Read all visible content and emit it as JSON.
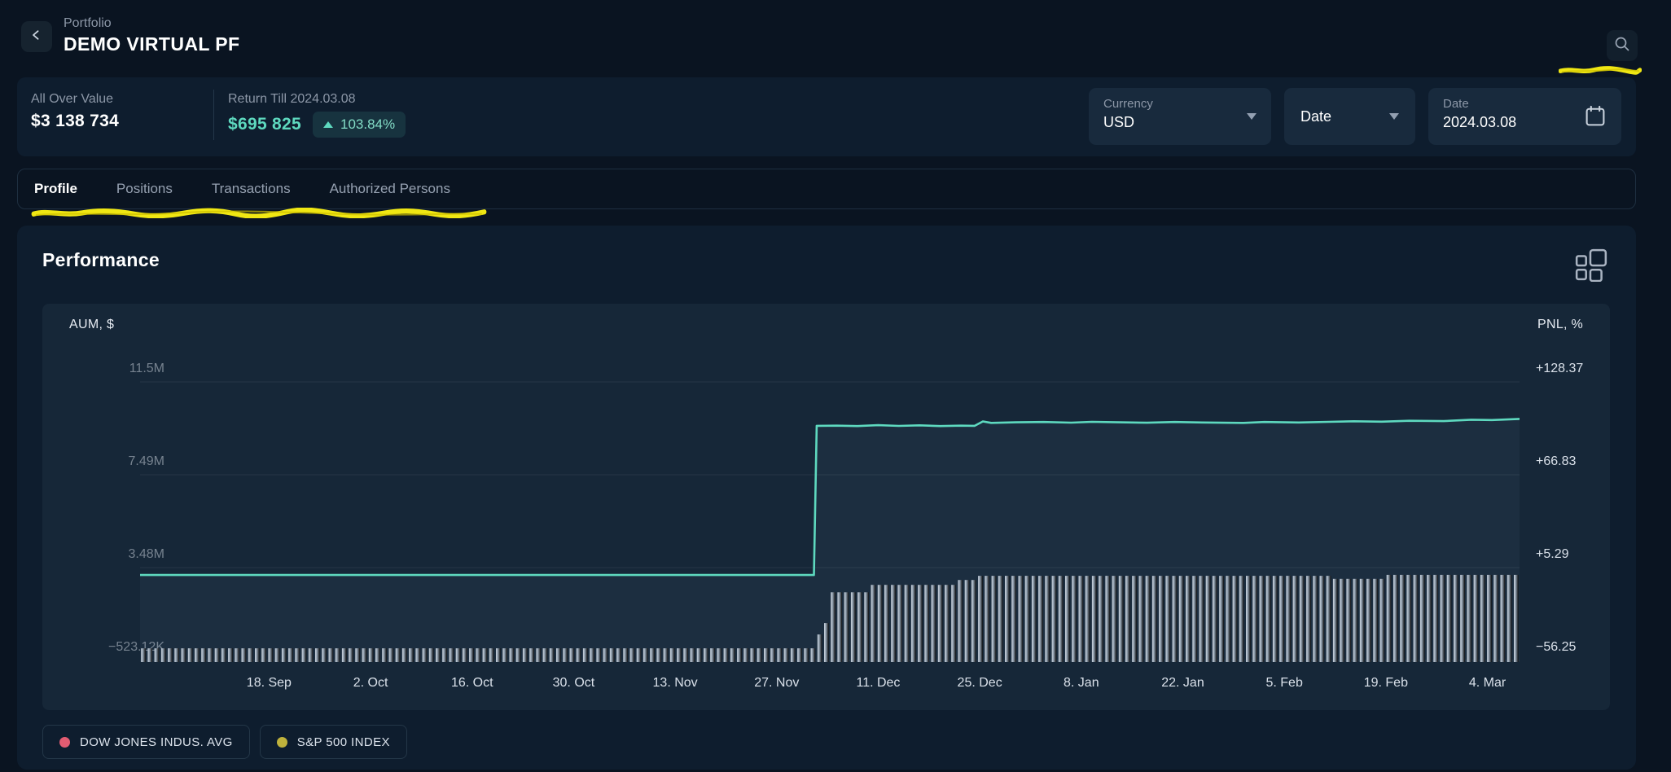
{
  "header": {
    "breadcrumb": "Portfolio",
    "title": "DEMO VIRTUAL PF"
  },
  "stats": {
    "all_over_value": {
      "label": "All Over Value",
      "value": "$3 138 734"
    },
    "return": {
      "label": "Return Till 2024.03.08",
      "value": "$695 825",
      "change": "103.84%"
    },
    "currency": {
      "label": "Currency",
      "value": "USD"
    },
    "date_dropdown": {
      "label": "Date"
    },
    "date_field": {
      "label": "Date",
      "value": "2024.03.08"
    }
  },
  "tabs": [
    {
      "label": "Profile",
      "active": true
    },
    {
      "label": "Positions",
      "active": false
    },
    {
      "label": "Transactions",
      "active": false
    },
    {
      "label": "Authorized Persons",
      "active": false
    }
  ],
  "performance": {
    "title": "Performance"
  },
  "legend": [
    {
      "label": "DOW JONES INDUS. AVG",
      "color": "#e25c72"
    },
    {
      "label": "S&P 500 INDEX",
      "color": "#bfb23c"
    }
  ],
  "chart_data": {
    "type": "line+bar",
    "title": "Performance",
    "grid": true,
    "legend_position": "bottom-left",
    "left_axis": {
      "label": "AUM, $",
      "tick_labels": [
        "11.5M",
        "7.49M",
        "3.48M",
        "−523.12K"
      ],
      "tick_values": [
        11500000,
        7490000,
        3480000,
        -523120
      ]
    },
    "right_axis": {
      "label": "PNL, %",
      "tick_labels": [
        "+128.37",
        "+66.83",
        "+5.29",
        "−56.25"
      ],
      "tick_values": [
        128.37,
        66.83,
        5.29,
        -56.25
      ]
    },
    "x_tick_labels": [
      "18. Sep",
      "2. Oct",
      "16. Oct",
      "30. Oct",
      "13. Nov",
      "27. Nov",
      "11. Dec",
      "25. Dec",
      "8. Jan",
      "22. Jan",
      "5. Feb",
      "19. Feb",
      "4. Mar"
    ],
    "series": [
      {
        "name": "PNL %",
        "type": "line",
        "axis": "right",
        "color": "#5ed9bf",
        "points": [
          [
            0.0,
            0.4
          ],
          [
            0.4885,
            0.4
          ],
          [
            0.4905,
            99.3
          ],
          [
            0.505,
            99.4
          ],
          [
            0.52,
            99.1
          ],
          [
            0.535,
            99.7
          ],
          [
            0.55,
            99.2
          ],
          [
            0.565,
            99.6
          ],
          [
            0.58,
            99.1
          ],
          [
            0.595,
            99.4
          ],
          [
            0.605,
            99.3
          ],
          [
            0.611,
            102.2
          ],
          [
            0.617,
            101.2
          ],
          [
            0.635,
            101.6
          ],
          [
            0.655,
            101.8
          ],
          [
            0.675,
            101.4
          ],
          [
            0.69,
            101.9
          ],
          [
            0.71,
            101.6
          ],
          [
            0.73,
            101.3
          ],
          [
            0.75,
            101.8
          ],
          [
            0.77,
            101.5
          ],
          [
            0.8,
            101.2
          ],
          [
            0.815,
            101.8
          ],
          [
            0.84,
            101.5
          ],
          [
            0.862,
            101.9
          ],
          [
            0.88,
            102.3
          ],
          [
            0.9,
            102.0
          ],
          [
            0.92,
            102.6
          ],
          [
            0.945,
            102.4
          ],
          [
            0.965,
            103.3
          ],
          [
            0.98,
            103.1
          ],
          [
            1.0,
            103.84
          ]
        ]
      },
      {
        "name": "AUM $",
        "type": "bar",
        "axis": "left",
        "color": "#93a0ae",
        "profile": [
          [
            0.0,
            0.489,
            0
          ],
          [
            0.489,
            0.4925,
            250000
          ],
          [
            0.4925,
            0.496,
            600000
          ],
          [
            0.496,
            0.5,
            1090000
          ],
          [
            0.5,
            0.528,
            2420000
          ],
          [
            0.528,
            0.592,
            2740000
          ],
          [
            0.592,
            0.606,
            2950000
          ],
          [
            0.606,
            0.862,
            3130000
          ],
          [
            0.862,
            0.904,
            3000000
          ],
          [
            0.904,
            1.0,
            3170000
          ]
        ]
      }
    ]
  }
}
